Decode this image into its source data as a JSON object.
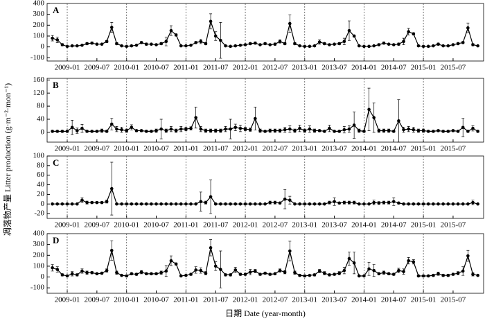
{
  "ylabel": "凋落物产量 Litter production (g·m⁻²·mon⁻¹)",
  "xlabel": "日期 Date (year-month)",
  "chart_data": [
    {
      "type": "line",
      "label": "A",
      "color": "#000",
      "x": [
        "2008-10",
        "2008-11",
        "2008-12",
        "2009-01",
        "2009-02",
        "2009-03",
        "2009-04",
        "2009-05",
        "2009-06",
        "2009-07",
        "2009-08",
        "2009-09",
        "2009-10",
        "2009-11",
        "2009-12",
        "2010-01",
        "2010-02",
        "2010-03",
        "2010-04",
        "2010-05",
        "2010-06",
        "2010-07",
        "2010-08",
        "2010-09",
        "2010-10",
        "2010-11",
        "2010-12",
        "2011-01",
        "2011-02",
        "2011-03",
        "2011-04",
        "2011-05",
        "2011-06",
        "2011-07",
        "2011-08",
        "2011-09",
        "2011-10",
        "2011-11",
        "2011-12",
        "2012-01",
        "2012-02",
        "2012-03",
        "2012-04",
        "2012-05",
        "2012-06",
        "2012-07",
        "2012-08",
        "2012-09",
        "2012-10",
        "2012-11",
        "2012-12",
        "2013-01",
        "2013-02",
        "2013-03",
        "2013-04",
        "2013-05",
        "2013-06",
        "2013-07",
        "2013-08",
        "2013-09",
        "2013-10",
        "2013-11",
        "2013-12",
        "2014-01",
        "2014-02",
        "2014-03",
        "2014-04",
        "2014-05",
        "2014-06",
        "2014-07",
        "2014-08",
        "2014-09",
        "2014-10",
        "2014-11",
        "2014-12",
        "2015-01",
        "2015-02",
        "2015-03",
        "2015-04",
        "2015-05",
        "2015-06",
        "2015-07",
        "2015-08",
        "2015-09",
        "2015-10",
        "2015-11",
        "2015-12"
      ],
      "values": [
        80,
        65,
        20,
        5,
        10,
        10,
        15,
        30,
        35,
        25,
        25,
        50,
        180,
        30,
        10,
        5,
        10,
        15,
        40,
        25,
        25,
        20,
        30,
        50,
        150,
        110,
        10,
        10,
        15,
        40,
        50,
        30,
        235,
        100,
        60,
        10,
        5,
        10,
        15,
        20,
        30,
        35,
        20,
        30,
        20,
        25,
        50,
        30,
        215,
        30,
        10,
        5,
        5,
        10,
        45,
        30,
        20,
        25,
        30,
        50,
        150,
        100,
        10,
        5,
        5,
        10,
        20,
        35,
        25,
        20,
        25,
        50,
        140,
        120,
        10,
        5,
        5,
        10,
        25,
        10,
        10,
        20,
        30,
        40,
        175,
        20,
        10
      ],
      "errors": [
        25,
        25,
        10,
        5,
        5,
        5,
        5,
        10,
        10,
        5,
        5,
        10,
        45,
        10,
        5,
        5,
        5,
        5,
        10,
        10,
        5,
        5,
        10,
        40,
        45,
        10,
        5,
        5,
        5,
        10,
        20,
        10,
        70,
        40,
        165,
        5,
        5,
        5,
        5,
        5,
        10,
        10,
        5,
        10,
        5,
        10,
        15,
        10,
        80,
        10,
        5,
        5,
        5,
        5,
        20,
        10,
        5,
        5,
        10,
        30,
        90,
        10,
        5,
        5,
        5,
        5,
        10,
        10,
        5,
        5,
        10,
        30,
        30,
        10,
        5,
        5,
        5,
        5,
        10,
        5,
        5,
        5,
        10,
        10,
        45,
        10,
        5
      ],
      "ylim": [
        -130,
        400
      ],
      "yticks": [
        -100,
        0,
        100,
        200,
        300,
        400
      ],
      "xticks": [
        "2009-01",
        "2009-07",
        "2010-01",
        "2010-07",
        "2011-01",
        "2011-07",
        "2012-01",
        "2012-07",
        "2013-01",
        "2013-07",
        "2014-01",
        "2014-07",
        "2015-01",
        "2015-07"
      ]
    },
    {
      "type": "line",
      "label": "B",
      "color": "#000",
      "x": [
        "2008-10",
        "2008-11",
        "2008-12",
        "2009-01",
        "2009-02",
        "2009-03",
        "2009-04",
        "2009-05",
        "2009-06",
        "2009-07",
        "2009-08",
        "2009-09",
        "2009-10",
        "2009-11",
        "2009-12",
        "2010-01",
        "2010-02",
        "2010-03",
        "2010-04",
        "2010-05",
        "2010-06",
        "2010-07",
        "2010-08",
        "2010-09",
        "2010-10",
        "2010-11",
        "2010-12",
        "2011-01",
        "2011-02",
        "2011-03",
        "2011-04",
        "2011-05",
        "2011-06",
        "2011-07",
        "2011-08",
        "2011-09",
        "2011-10",
        "2011-11",
        "2011-12",
        "2012-01",
        "2012-02",
        "2012-03",
        "2012-04",
        "2012-05",
        "2012-06",
        "2012-07",
        "2012-08",
        "2012-09",
        "2012-10",
        "2012-11",
        "2012-12",
        "2013-01",
        "2013-02",
        "2013-03",
        "2013-04",
        "2013-05",
        "2013-06",
        "2013-07",
        "2013-08",
        "2013-09",
        "2013-10",
        "2013-11",
        "2013-12",
        "2014-01",
        "2014-02",
        "2014-03",
        "2014-04",
        "2014-05",
        "2014-06",
        "2014-07",
        "2014-08",
        "2014-09",
        "2014-10",
        "2014-11",
        "2014-12",
        "2015-01",
        "2015-02",
        "2015-03",
        "2015-04",
        "2015-05",
        "2015-06",
        "2015-07",
        "2015-08",
        "2015-09",
        "2015-10",
        "2015-11",
        "2015-12"
      ],
      "values": [
        3,
        3,
        3,
        3,
        15,
        5,
        12,
        3,
        3,
        3,
        5,
        3,
        25,
        10,
        8,
        5,
        15,
        5,
        5,
        3,
        3,
        5,
        10,
        5,
        10,
        5,
        10,
        10,
        12,
        45,
        10,
        5,
        5,
        5,
        5,
        10,
        10,
        15,
        12,
        10,
        8,
        42,
        5,
        3,
        5,
        5,
        5,
        8,
        10,
        5,
        12,
        5,
        10,
        5,
        5,
        3,
        12,
        3,
        3,
        8,
        10,
        22,
        5,
        3,
        70,
        45,
        5,
        5,
        5,
        3,
        35,
        8,
        10,
        8,
        5,
        5,
        3,
        3,
        5,
        3,
        3,
        5,
        3,
        15,
        3,
        12,
        3
      ],
      "errors": [
        3,
        3,
        3,
        3,
        22,
        8,
        12,
        3,
        3,
        3,
        5,
        3,
        18,
        8,
        8,
        5,
        8,
        3,
        3,
        3,
        3,
        5,
        30,
        5,
        8,
        5,
        8,
        5,
        5,
        32,
        8,
        5,
        5,
        5,
        5,
        8,
        30,
        10,
        10,
        5,
        5,
        35,
        5,
        3,
        5,
        5,
        5,
        8,
        10,
        5,
        10,
        5,
        10,
        5,
        3,
        3,
        10,
        3,
        3,
        10,
        10,
        40,
        5,
        3,
        65,
        45,
        5,
        5,
        5,
        3,
        65,
        8,
        8,
        8,
        5,
        5,
        3,
        3,
        3,
        3,
        3,
        3,
        3,
        28,
        3,
        8,
        3
      ],
      "ylim": [
        -30,
        165
      ],
      "yticks": [
        0,
        40,
        80,
        120,
        160
      ],
      "xticks": [
        "2009-01",
        "2009-07",
        "2010-01",
        "2010-07",
        "2011-01",
        "2011-07",
        "2012-01",
        "2012-07",
        "2013-01",
        "2013-07",
        "2014-01",
        "2014-07",
        "2015-01",
        "2015-07"
      ]
    },
    {
      "type": "line",
      "label": "C",
      "color": "#000",
      "x": [
        "2008-10",
        "2008-11",
        "2008-12",
        "2009-01",
        "2009-02",
        "2009-03",
        "2009-04",
        "2009-05",
        "2009-06",
        "2009-07",
        "2009-08",
        "2009-09",
        "2009-10",
        "2009-11",
        "2009-12",
        "2010-01",
        "2010-02",
        "2010-03",
        "2010-04",
        "2010-05",
        "2010-06",
        "2010-07",
        "2010-08",
        "2010-09",
        "2010-10",
        "2010-11",
        "2010-12",
        "2011-01",
        "2011-02",
        "2011-03",
        "2011-04",
        "2011-05",
        "2011-06",
        "2011-07",
        "2011-08",
        "2011-09",
        "2011-10",
        "2011-11",
        "2011-12",
        "2012-01",
        "2012-02",
        "2012-03",
        "2012-04",
        "2012-05",
        "2012-06",
        "2012-07",
        "2012-08",
        "2012-09",
        "2012-10",
        "2012-11",
        "2012-12",
        "2013-01",
        "2013-02",
        "2013-03",
        "2013-04",
        "2013-05",
        "2013-06",
        "2013-07",
        "2013-08",
        "2013-09",
        "2013-10",
        "2013-11",
        "2013-12",
        "2014-01",
        "2014-02",
        "2014-03",
        "2014-04",
        "2014-05",
        "2014-06",
        "2014-07",
        "2014-08",
        "2014-09",
        "2014-10",
        "2014-11",
        "2014-12",
        "2015-01",
        "2015-02",
        "2015-03",
        "2015-04",
        "2015-05",
        "2015-06",
        "2015-07",
        "2015-08",
        "2015-09",
        "2015-10",
        "2015-11",
        "2015-12"
      ],
      "values": [
        0,
        0,
        0,
        0,
        0,
        0,
        8,
        3,
        3,
        3,
        3,
        5,
        32,
        0,
        0,
        0,
        0,
        0,
        0,
        0,
        0,
        0,
        0,
        0,
        0,
        0,
        0,
        0,
        0,
        0,
        5,
        3,
        15,
        0,
        0,
        0,
        0,
        0,
        0,
        0,
        0,
        0,
        0,
        0,
        3,
        3,
        2,
        10,
        8,
        0,
        0,
        0,
        0,
        0,
        0,
        0,
        3,
        5,
        2,
        3,
        3,
        3,
        0,
        0,
        0,
        3,
        2,
        3,
        3,
        5,
        2,
        0,
        0,
        0,
        0,
        0,
        0,
        0,
        0,
        0,
        0,
        0,
        0,
        0,
        0,
        3,
        0
      ],
      "errors": [
        1,
        1,
        1,
        1,
        1,
        1,
        5,
        3,
        2,
        2,
        2,
        3,
        55,
        1,
        1,
        1,
        1,
        1,
        1,
        1,
        1,
        1,
        1,
        1,
        1,
        1,
        1,
        1,
        1,
        1,
        20,
        3,
        35,
        1,
        1,
        1,
        1,
        1,
        1,
        1,
        1,
        1,
        1,
        1,
        3,
        3,
        2,
        20,
        8,
        1,
        1,
        1,
        1,
        1,
        1,
        1,
        3,
        8,
        2,
        3,
        3,
        3,
        1,
        1,
        1,
        5,
        3,
        3,
        3,
        8,
        2,
        1,
        1,
        1,
        1,
        1,
        1,
        1,
        1,
        1,
        1,
        1,
        1,
        1,
        1,
        5,
        1
      ],
      "ylim": [
        -30,
        100
      ],
      "yticks": [
        -20,
        0,
        20,
        40,
        60,
        80,
        100
      ],
      "xticks": [
        "2009-01",
        "2009-07",
        "2010-01",
        "2010-07",
        "2011-01",
        "2011-07",
        "2012-01",
        "2012-07",
        "2013-01",
        "2013-07",
        "2014-01",
        "2014-07",
        "2015-01",
        "2015-07"
      ]
    },
    {
      "type": "line",
      "label": "D",
      "color": "#000",
      "x": [
        "2008-10",
        "2008-11",
        "2008-12",
        "2009-01",
        "2009-02",
        "2009-03",
        "2009-04",
        "2009-05",
        "2009-06",
        "2009-07",
        "2009-08",
        "2009-09",
        "2009-10",
        "2009-11",
        "2009-12",
        "2010-01",
        "2010-02",
        "2010-03",
        "2010-04",
        "2010-05",
        "2010-06",
        "2010-07",
        "2010-08",
        "2010-09",
        "2010-10",
        "2010-11",
        "2010-12",
        "2011-01",
        "2011-02",
        "2011-03",
        "2011-04",
        "2011-05",
        "2011-06",
        "2011-07",
        "2011-08",
        "2011-09",
        "2011-10",
        "2011-11",
        "2011-12",
        "2012-01",
        "2012-02",
        "2012-03",
        "2012-04",
        "2012-05",
        "2012-06",
        "2012-07",
        "2012-08",
        "2012-09",
        "2012-10",
        "2012-11",
        "2012-12",
        "2013-01",
        "2013-02",
        "2013-03",
        "2013-04",
        "2013-05",
        "2013-06",
        "2013-07",
        "2013-08",
        "2013-09",
        "2013-10",
        "2013-11",
        "2013-12",
        "2014-01",
        "2014-02",
        "2014-03",
        "2014-04",
        "2014-05",
        "2014-06",
        "2014-07",
        "2014-08",
        "2014-09",
        "2014-10",
        "2014-11",
        "2014-12",
        "2015-01",
        "2015-02",
        "2015-03",
        "2015-04",
        "2015-05",
        "2015-06",
        "2015-07",
        "2015-08",
        "2015-09",
        "2015-10",
        "2015-11",
        "2015-12"
      ],
      "values": [
        85,
        70,
        20,
        10,
        30,
        20,
        55,
        40,
        40,
        30,
        35,
        60,
        245,
        40,
        15,
        10,
        30,
        25,
        45,
        30,
        30,
        30,
        40,
        55,
        150,
        120,
        10,
        15,
        25,
        65,
        60,
        35,
        270,
        100,
        70,
        20,
        20,
        65,
        25,
        25,
        45,
        55,
        25,
        35,
        25,
        30,
        60,
        45,
        240,
        40,
        15,
        10,
        15,
        20,
        55,
        35,
        20,
        25,
        35,
        60,
        170,
        130,
        10,
        10,
        75,
        60,
        30,
        40,
        30,
        25,
        60,
        50,
        150,
        140,
        10,
        10,
        10,
        15,
        30,
        15,
        15,
        25,
        35,
        55,
        195,
        25,
        15
      ],
      "errors": [
        30,
        25,
        10,
        5,
        20,
        10,
        20,
        15,
        10,
        10,
        10,
        15,
        90,
        15,
        5,
        5,
        10,
        10,
        15,
        10,
        10,
        10,
        15,
        50,
        45,
        10,
        5,
        5,
        10,
        30,
        25,
        15,
        75,
        40,
        170,
        10,
        10,
        25,
        10,
        10,
        25,
        15,
        10,
        10,
        10,
        10,
        15,
        15,
        90,
        15,
        10,
        5,
        5,
        10,
        15,
        15,
        10,
        10,
        15,
        30,
        60,
        100,
        5,
        5,
        60,
        55,
        10,
        15,
        10,
        10,
        20,
        25,
        30,
        20,
        5,
        5,
        5,
        10,
        15,
        10,
        10,
        10,
        15,
        40,
        50,
        15,
        5
      ],
      "ylim": [
        -150,
        400
      ],
      "yticks": [
        -100,
        0,
        100,
        200,
        300,
        400
      ],
      "xticks": [
        "2009-01",
        "2009-07",
        "2010-01",
        "2010-07",
        "2011-01",
        "2011-07",
        "2012-01",
        "2012-07",
        "2013-01",
        "2013-07",
        "2014-01",
        "2014-07",
        "2015-01",
        "2015-07"
      ]
    }
  ]
}
